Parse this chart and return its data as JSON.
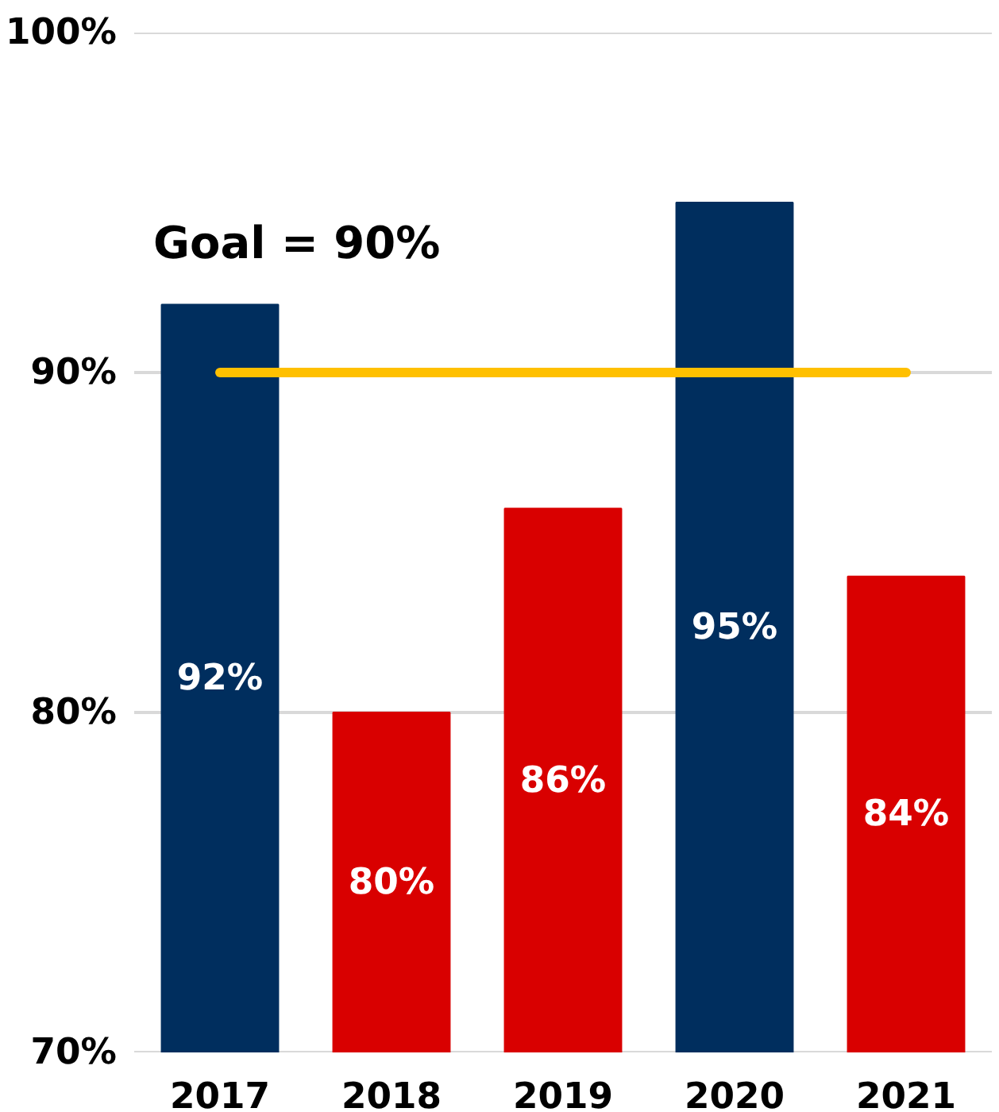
{
  "chart_data": {
    "type": "bar",
    "categories": [
      "2017",
      "2018",
      "2019",
      "2020",
      "2021"
    ],
    "values": [
      92,
      80,
      86,
      95,
      84
    ],
    "colors": [
      "#002e5e",
      "#d90000",
      "#d90000",
      "#002e5e",
      "#d90000"
    ],
    "value_labels": [
      "92%",
      "80%",
      "86%",
      "95%",
      "84%"
    ],
    "ylim": [
      70,
      100
    ],
    "yticks": [
      {
        "value": 70,
        "label": "70%"
      },
      {
        "value": 80,
        "label": "80%"
      },
      {
        "value": 90,
        "label": "90%"
      },
      {
        "value": 100,
        "label": "100%"
      }
    ],
    "grid": "y",
    "ref_lines": [
      {
        "axis": "y",
        "value": 90,
        "label": "Goal = 90%",
        "color": "#ffc000",
        "line_style": "solid"
      }
    ]
  }
}
